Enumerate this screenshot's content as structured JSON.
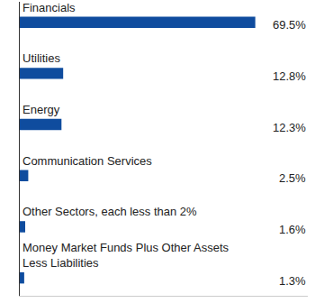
{
  "chart_data": {
    "type": "bar",
    "orientation": "horizontal",
    "categories": [
      "Financials",
      "Utilities",
      "Energy",
      "Communication Services",
      "Other Sectors, each less than 2%",
      "Money Market Funds Plus Other Assets Less Liabilities"
    ],
    "values": [
      69.5,
      12.8,
      12.3,
      2.5,
      1.6,
      1.3
    ],
    "value_labels": [
      "69.5%",
      "12.8%",
      "12.3%",
      "2.5%",
      "1.6%",
      "1.3%"
    ],
    "color": "#0f4c9e",
    "xlim": [
      0,
      85
    ],
    "tick_labels": false,
    "data_labels": true,
    "grid": false
  }
}
